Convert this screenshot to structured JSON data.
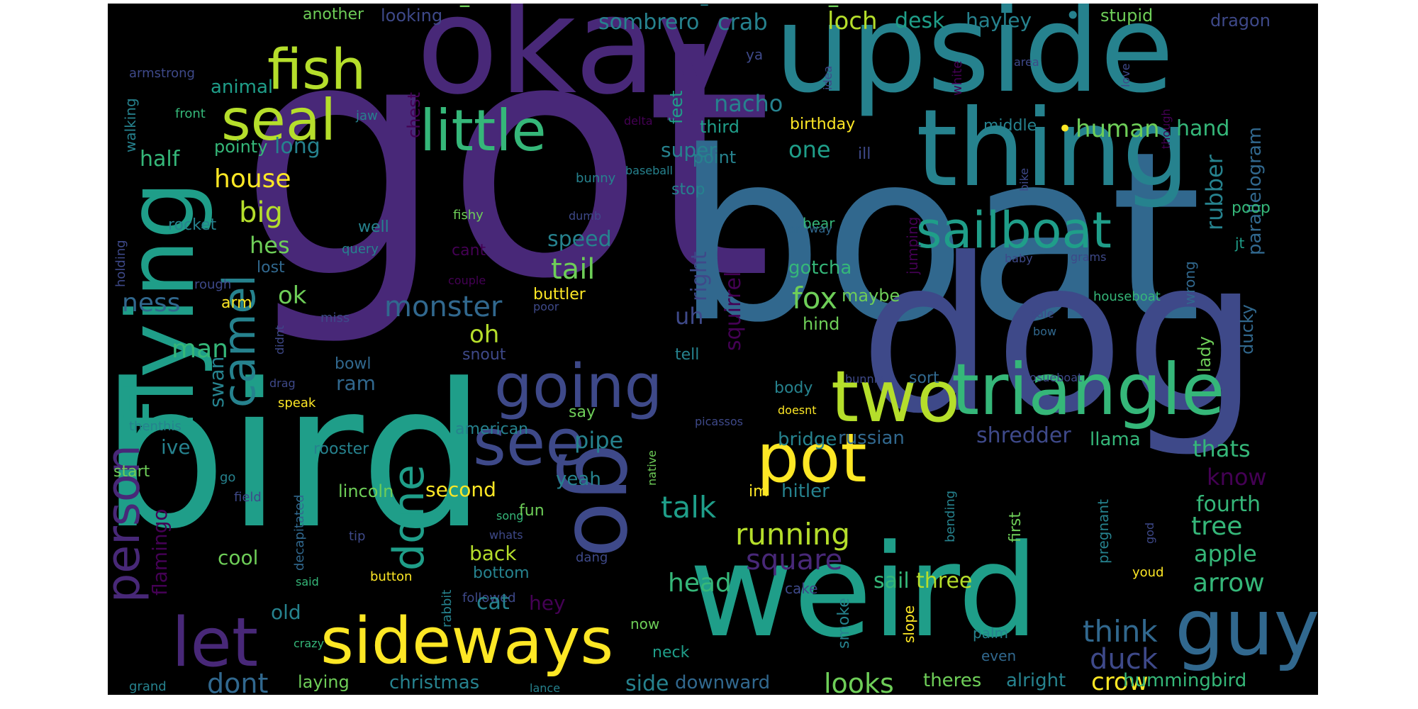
{
  "palette": {
    "yellow": "#fde725",
    "lime": "#b5de2b",
    "green": "#6ece58",
    "emerald": "#35b779",
    "teal": "#1f9e89",
    "cyan": "#26828e",
    "blue": "#31688e",
    "indigo": "#3e4989",
    "purple": "#482878",
    "violet": "#440154",
    "background": "#000000"
  },
  "words": {
    "w_got": "got",
    "w_boat": "boat",
    "w_dog": "dog",
    "w_bird": "bird",
    "w_weird": "weird",
    "w_okay": "okay",
    "w_upside": "upside",
    "w_thing": "thing",
    "w_flying": "flying",
    "w_triangle": "triangle",
    "w_two": "two",
    "w_sideways": "sideways",
    "w_guy": "guy",
    "w_pot": "pot",
    "w_see": "see",
    "w_going": "going",
    "w_little": "little",
    "w_sailboat": "sailboat",
    "w_fish": "fish",
    "w_seal": "seal",
    "w_let": "let",
    "w_camel": "camel",
    "w_person": "person",
    "w_done": "done",
    "w_talk": "talk",
    "w_running": "running",
    "w_square": "square",
    "w_sail": "sail",
    "w_three": "three",
    "w_head": "head",
    "w_think": "think",
    "w_duck": "duck",
    "w_crow": "crow",
    "w_looks": "looks",
    "w_dont": "dont",
    "w_monster": "monster",
    "w_tail": "tail",
    "w_speed": "speed",
    "w_fox": "fox",
    "w_ness": "ness",
    "w_man": "man",
    "w_house": "house",
    "w_big": "big",
    "w_hes": "hes",
    "w_ok": "ok",
    "w_oh": "oh",
    "w_uh": "uh",
    "w_right": "right",
    "w_squirrel": "squirrel",
    "w_gotcha": "gotcha",
    "w_maybe": "maybe",
    "w_hind": "hind",
    "w_one": "one",
    "w_super": "super",
    "w_long": "long",
    "w_pointy": "pointy",
    "w_half": "half",
    "w_animal": "animal",
    "w_nacho": "nacho",
    "w_human": "human",
    "w_hand": "hand",
    "w_middle": "middle",
    "w_rubber": "rubber",
    "w_parallelogram": "parallelogram",
    "w_birthday": "birthday",
    "w_point": "point",
    "w_third": "third",
    "w_chest": "chest",
    "w_feet": "feet",
    "w_loch": "loch",
    "w_desk": "desk",
    "w_hayley": "hayley",
    "w_stupid": "stupid",
    "w_dragon": "dragon",
    "w_sombrero": "sombrero",
    "w_crab": "crab",
    "w_looking": "looking",
    "w_another": "another",
    "w_armstrong": "armstrong",
    "w_front": "front",
    "w_walking": "walking",
    "w_jaw": "jaw",
    "w_delta": "delta",
    "w_ya": "ya",
    "w_idea": "idea",
    "w_white": "white",
    "w_area": "area",
    "w_love": "love",
    "w_though": "though",
    "w_baseball": "baseball",
    "w_bunny": "bunny",
    "w_stop": "stop",
    "w_bear": "bear",
    "w_anyway": "anyway",
    "w_jumping": "jumping",
    "w_bike": "bike",
    "w_baby": "baby",
    "w_grams": "grams",
    "w_poop": "poop",
    "w_jt": "jt",
    "w_wrong": "wrong",
    "w_houseboat": "houseboat",
    "w_ducky": "ducky",
    "w_lady": "lady",
    "w_sale": "sale",
    "w_bow": "bow",
    "w_hosueboat": "hosueboat",
    "w_bunnie": "bunnie",
    "w_sort": "sort",
    "w_doesnt": "doesnt",
    "w_body": "body",
    "w_tell": "tell",
    "w_bridge": "bridge",
    "w_russian": "russian",
    "w_shredder": "shredder",
    "w_llama": "llama",
    "w_thats": "thats",
    "w_know": "know",
    "w_fourth": "fourth",
    "w_tree": "tree",
    "w_apple": "apple",
    "w_arrow": "arrow",
    "w_hummingbird": "hummingbird",
    "w_theres": "theres",
    "w_alright": "alright",
    "w_palm": "palm",
    "w_even": "even",
    "w_slope": "slope",
    "w_smoke": "smoke",
    "w_cake": "cake",
    "w_downward": "downward",
    "w_side": "side",
    "w_neck": "neck",
    "w_now": "now",
    "w_christmas": "christmas",
    "w_laying": "laying",
    "w_grand": "grand",
    "w_crazy": "crazy",
    "w_lance": "lance",
    "w_old": "old",
    "w_cool": "cool",
    "w_flamingo": "flamingo",
    "w_start": "start",
    "w_field": "field",
    "w_go": "go",
    "w_thenthis": "thenthis",
    "w_ive": "ive",
    "w_swan": "swan",
    "w_speak": "speak",
    "w_drag": "drag",
    "w_bowl": "bowl",
    "w_ram": "ram",
    "w_snout": "snout",
    "w_didnt": "didnt",
    "w_miss": "miss",
    "w_arm": "arm",
    "w_rough": "rough",
    "w_couple": "couple",
    "w_buttler": "buttler",
    "w_poor": "poor",
    "w_lost": "lost",
    "w_query": "query",
    "w_holding": "holding",
    "w_rocket": "rocket",
    "w_well": "well",
    "w_fishy": "fishy",
    "w_cant": "cant",
    "w_dumb": "dumb",
    "w_pipe": "pipe",
    "w_yeah": "yeah",
    "w_second": "second",
    "w_lincoln": "lincoln",
    "w_rooster": "rooster",
    "w_american": "american",
    "w_say": "say",
    "w_decapitated": "decapitated",
    "w_tip": "tip",
    "w_song": "song",
    "w_said": "said",
    "w_button": "button",
    "w_rabbit": "rabbit",
    "w_followed": "followed",
    "w_fun": "fun",
    "w_whats": "whats",
    "w_back": "back",
    "w_bottom": "bottom",
    "w_cat": "cat",
    "w_hey": "hey",
    "w_dang": "dang",
    "w_picassos": "picassos",
    "w_native": "native",
    "w_hitler": "hitler",
    "w_im": "im",
    "w_bending": "bending",
    "w_first": "first",
    "w_pregnant": "pregnant",
    "w_god": "god",
    "w_youd": "youd",
    "w_ill": "ill",
    "w_dash1": "–",
    "w_dash2": "–",
    "w_dash3": "–",
    "w_dot": "•"
  }
}
